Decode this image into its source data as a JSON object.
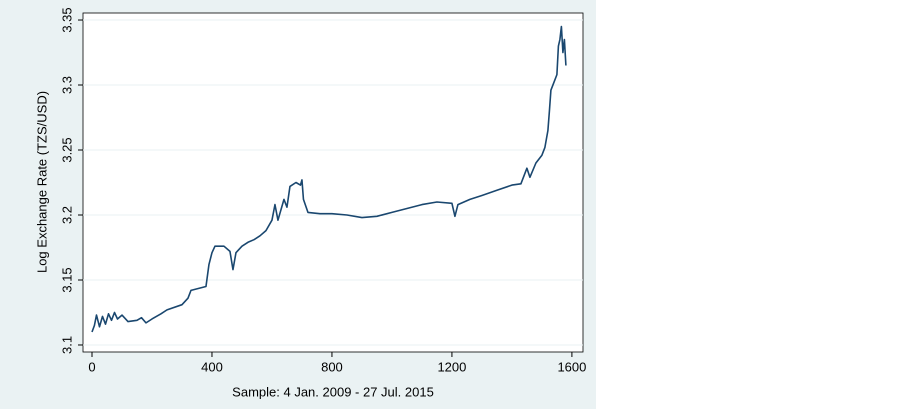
{
  "chart_data": {
    "type": "line",
    "y_label": "Log Exchange Rate (TZS/USD)",
    "x_label": "Sample: 4 Jan. 2009 - 27 Jul. 2015",
    "x": [
      0,
      8,
      15,
      25,
      35,
      45,
      55,
      65,
      75,
      85,
      100,
      120,
      150,
      165,
      180,
      200,
      230,
      250,
      300,
      320,
      330,
      380,
      390,
      400,
      410,
      440,
      460,
      470,
      480,
      500,
      520,
      540,
      560,
      580,
      600,
      610,
      620,
      640,
      650,
      660,
      680,
      695,
      700,
      705,
      720,
      760,
      800,
      850,
      900,
      950,
      1000,
      1050,
      1100,
      1150,
      1200,
      1210,
      1220,
      1260,
      1300,
      1350,
      1400,
      1430,
      1450,
      1460,
      1480,
      1490,
      1500,
      1510,
      1520,
      1525,
      1530,
      1540,
      1550,
      1555,
      1560,
      1565,
      1570,
      1575,
      1580
    ],
    "series": [
      {
        "color": "#1a476f",
        "values": [
          3.11,
          3.115,
          3.123,
          3.114,
          3.122,
          3.116,
          3.124,
          3.119,
          3.125,
          3.12,
          3.123,
          3.118,
          3.119,
          3.121,
          3.117,
          3.12,
          3.124,
          3.127,
          3.131,
          3.136,
          3.142,
          3.145,
          3.162,
          3.171,
          3.176,
          3.176,
          3.172,
          3.158,
          3.171,
          3.176,
          3.179,
          3.181,
          3.184,
          3.188,
          3.196,
          3.208,
          3.196,
          3.212,
          3.206,
          3.222,
          3.225,
          3.223,
          3.227,
          3.212,
          3.202,
          3.201,
          3.201,
          3.2,
          3.198,
          3.199,
          3.202,
          3.205,
          3.208,
          3.21,
          3.209,
          3.199,
          3.208,
          3.212,
          3.215,
          3.219,
          3.223,
          3.224,
          3.236,
          3.229,
          3.24,
          3.243,
          3.246,
          3.252,
          3.265,
          3.28,
          3.296,
          3.302,
          3.308,
          3.33,
          3.335,
          3.345,
          3.325,
          3.335,
          3.315
        ]
      }
    ],
    "xlim": [
      -30,
      1637
    ],
    "ylim": [
      3.0946,
      3.3554
    ],
    "xticks": [
      0,
      400,
      800,
      1200,
      1600
    ],
    "yticks": [
      3.1,
      3.15,
      3.2,
      3.25,
      3.3,
      3.35
    ],
    "grid": true
  }
}
